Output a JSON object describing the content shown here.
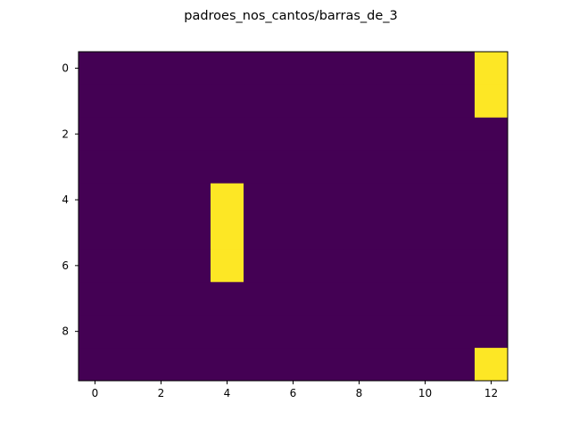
{
  "chart_data": {
    "type": "heatmap",
    "title": "padroes_nos_cantos/barras_de_3",
    "xlabel": "",
    "ylabel": "",
    "rows": 10,
    "cols": 13,
    "xlim": [
      -0.5,
      12.5
    ],
    "ylim": [
      9.5,
      -0.5
    ],
    "xticks": [
      0,
      2,
      4,
      6,
      8,
      10,
      12
    ],
    "yticks": [
      0,
      2,
      4,
      6,
      8
    ],
    "xtick_labels": [
      "0",
      "2",
      "4",
      "6",
      "8",
      "10",
      "12"
    ],
    "ytick_labels": [
      "0",
      "2",
      "4",
      "6",
      "8"
    ],
    "grid": false,
    "colormap": "viridis",
    "colors": {
      "low": "#440154",
      "high": "#fde725"
    },
    "values": [
      [
        0,
        0,
        0,
        0,
        0,
        0,
        0,
        0,
        0,
        0,
        0,
        0,
        1
      ],
      [
        0,
        0,
        0,
        0,
        0,
        0,
        0,
        0,
        0,
        0,
        0,
        0,
        1
      ],
      [
        0,
        0,
        0,
        0,
        0,
        0,
        0,
        0,
        0,
        0,
        0,
        0,
        0
      ],
      [
        0,
        0,
        0,
        0,
        0,
        0,
        0,
        0,
        0,
        0,
        0,
        0,
        0
      ],
      [
        0,
        0,
        0,
        0,
        1,
        0,
        0,
        0,
        0,
        0,
        0,
        0,
        0
      ],
      [
        0,
        0,
        0,
        0,
        1,
        0,
        0,
        0,
        0,
        0,
        0,
        0,
        0
      ],
      [
        0,
        0,
        0,
        0,
        1,
        0,
        0,
        0,
        0,
        0,
        0,
        0,
        0
      ],
      [
        0,
        0,
        0,
        0,
        0,
        0,
        0,
        0,
        0,
        0,
        0,
        0,
        0
      ],
      [
        0,
        0,
        0,
        0,
        0,
        0,
        0,
        0,
        0,
        0,
        0,
        0,
        0
      ],
      [
        0,
        0,
        0,
        0,
        0,
        0,
        0,
        0,
        0,
        0,
        0,
        0,
        1
      ]
    ]
  }
}
